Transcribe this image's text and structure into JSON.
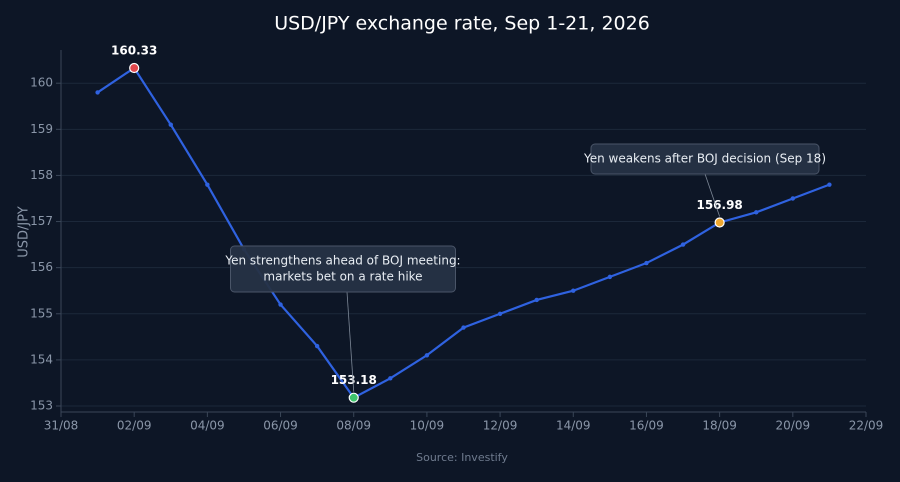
{
  "chart_data": {
    "type": "line",
    "title": "USD/JPY exchange rate, Sep 1-21, 2026",
    "y_label": "USD/JPY",
    "source": "Source: Investify",
    "x": [
      "2026-09-01",
      "2026-09-02",
      "2026-09-03",
      "2026-09-04",
      "2026-09-05",
      "2026-09-06",
      "2026-09-07",
      "2026-09-08",
      "2026-09-09",
      "2026-09-10",
      "2026-09-11",
      "2026-09-12",
      "2026-09-13",
      "2026-09-14",
      "2026-09-15",
      "2026-09-16",
      "2026-09-17",
      "2026-09-18",
      "2026-09-19",
      "2026-09-20",
      "2026-09-21"
    ],
    "series": [
      {
        "name": "USD/JPY",
        "color": "#2f62e0",
        "values": [
          159.8,
          160.33,
          159.1,
          157.8,
          156.4,
          155.2,
          154.3,
          153.18,
          153.6,
          154.1,
          154.7,
          155.0,
          155.3,
          155.5,
          155.8,
          156.1,
          156.5,
          156.98,
          157.2,
          157.5,
          157.8
        ]
      }
    ],
    "highlights": [
      {
        "index": 1,
        "color": "#e0474c"
      },
      {
        "index": 7,
        "color": "#3ec46d"
      },
      {
        "index": 17,
        "color": "#f0a830"
      }
    ],
    "annotations": [
      {
        "index": 7,
        "lines": [
          "Yen strengthens ahead of BOJ meeting:",
          "markets bet on a rate hike"
        ]
      },
      {
        "index": 17,
        "lines": [
          "Yen weakens after BOJ decision (Sep 18)"
        ]
      }
    ],
    "xlim": [
      "2026-08-31",
      "2026-09-22"
    ],
    "xticks": [
      {
        "value": "2026-08-31",
        "label": "31/08"
      },
      {
        "value": "2026-09-02",
        "label": "02/09"
      },
      {
        "value": "2026-09-04",
        "label": "04/09"
      },
      {
        "value": "2026-09-06",
        "label": "06/09"
      },
      {
        "value": "2026-09-08",
        "label": "08/09"
      },
      {
        "value": "2026-09-10",
        "label": "10/09"
      },
      {
        "value": "2026-09-12",
        "label": "12/09"
      },
      {
        "value": "2026-09-14",
        "label": "14/09"
      },
      {
        "value": "2026-09-16",
        "label": "16/09"
      },
      {
        "value": "2026-09-18",
        "label": "18/09"
      },
      {
        "value": "2026-09-20",
        "label": "20/09"
      },
      {
        "value": "2026-09-22",
        "label": "22/09"
      }
    ],
    "ylim": [
      152.87,
      160.72
    ],
    "yticks": [
      153,
      154,
      155,
      156,
      157,
      158,
      159,
      160
    ],
    "grid": true
  }
}
